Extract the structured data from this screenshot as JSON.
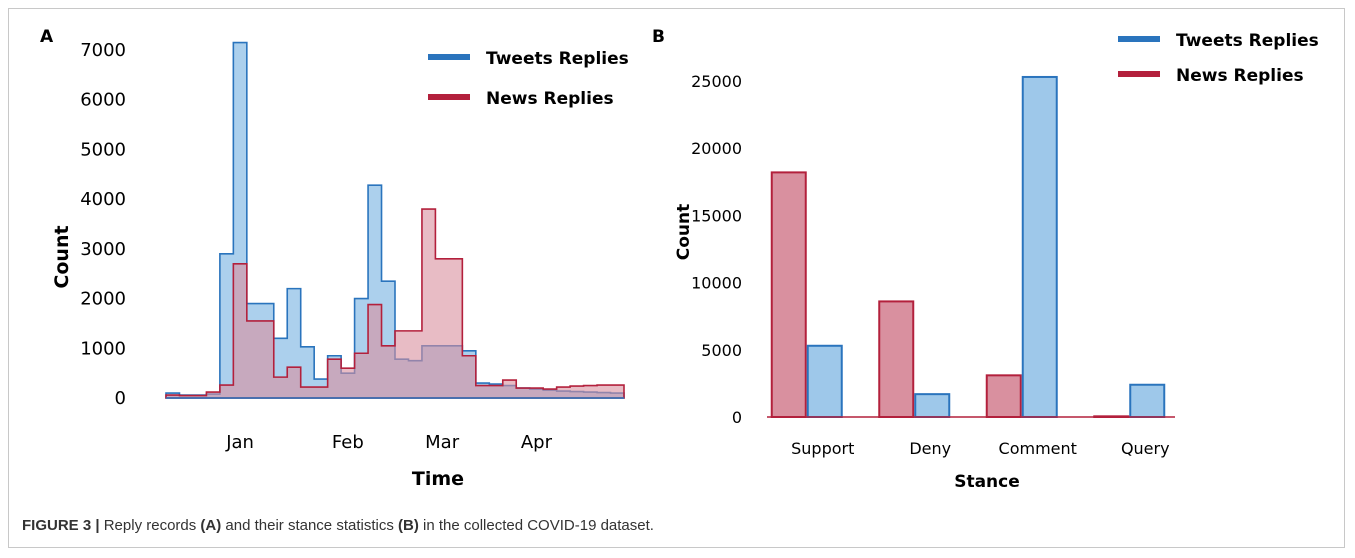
{
  "caption": {
    "figure_label": "FIGURE 3 |",
    "part1": " Reply records ",
    "label_a": "(A)",
    "part2": " and their stance statistics ",
    "label_b": "(B)",
    "part3": " in the collected COVID-19 dataset."
  },
  "colors": {
    "tweets_line": "#2a74bd",
    "tweets_fill": "#9ec8ea",
    "news_line": "#b3203c",
    "news_fill": "#d9909f"
  },
  "chart_data": [
    {
      "panel_label": "A",
      "type": "area",
      "step": true,
      "xlabel": "Time",
      "ylabel": "Count",
      "ylim": [
        0,
        7000
      ],
      "yticks": [
        0,
        1000,
        2000,
        3000,
        4000,
        5000,
        6000,
        7000
      ],
      "x_ticks": [
        {
          "label": "Jan",
          "at": 5
        },
        {
          "label": "Feb",
          "at": 13
        },
        {
          "label": "Mar",
          "at": 20
        },
        {
          "label": "Apr",
          "at": 27
        }
      ],
      "grid": false,
      "legend_position": "top-right",
      "bins": 34,
      "series": [
        {
          "name": "Tweets Replies",
          "values": [
            100,
            60,
            60,
            80,
            2900,
            7150,
            1900,
            1900,
            1200,
            2200,
            1030,
            380,
            850,
            500,
            2000,
            4280,
            2350,
            780,
            750,
            1050,
            1050,
            1050,
            950,
            300,
            280,
            250,
            200,
            180,
            160,
            140,
            130,
            120,
            110,
            100
          ]
        },
        {
          "name": "News Replies",
          "values": [
            60,
            50,
            50,
            120,
            260,
            2700,
            1550,
            1550,
            420,
            620,
            220,
            220,
            780,
            600,
            900,
            1880,
            1050,
            1350,
            1350,
            3800,
            2800,
            2800,
            850,
            250,
            250,
            360,
            200,
            200,
            180,
            220,
            240,
            250,
            260,
            260
          ]
        }
      ]
    },
    {
      "panel_label": "B",
      "type": "bar",
      "xlabel": "Stance",
      "ylabel": "Count",
      "ylim": [
        0,
        25000
      ],
      "yticks": [
        0,
        5000,
        10000,
        15000,
        20000,
        25000
      ],
      "categories": [
        "Support",
        "Deny",
        "Comment",
        "Query"
      ],
      "grid": false,
      "legend_position": "top-right",
      "series": [
        {
          "name": "Tweets Replies",
          "values": [
            5300,
            1700,
            25300,
            2400
          ]
        },
        {
          "name": "News Replies",
          "values": [
            18200,
            8600,
            3100,
            50
          ]
        }
      ]
    }
  ]
}
